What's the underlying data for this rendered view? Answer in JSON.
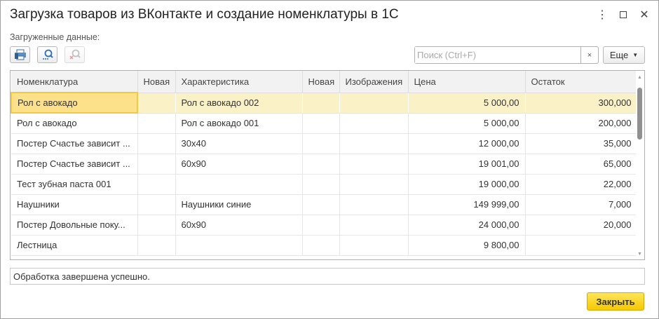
{
  "window": {
    "title": "Загрузка товаров из ВКонтакте и создание номенклатуры в 1С"
  },
  "section_label": "Загруженные данные:",
  "toolbar": {
    "buttons": [
      {
        "icon": "print-icon"
      },
      {
        "icon": "find-icon"
      },
      {
        "icon": "cancel-search-icon",
        "disabled": true
      }
    ]
  },
  "search": {
    "placeholder": "Поиск (Ctrl+F)",
    "value": "",
    "clear": "×"
  },
  "more_label": "Еще",
  "table": {
    "columns": [
      "Номенклатура",
      "Новая",
      "Характеристика",
      "Новая",
      "Изображения",
      "Цена",
      "Остаток"
    ],
    "rows": [
      [
        "Рол с авокадо",
        "",
        "Рол с авокадо 002",
        "",
        "",
        "5 000,00",
        "300,000"
      ],
      [
        "Рол с авокадо",
        "",
        "Рол с авокадо 001",
        "",
        "",
        "5 000,00",
        "200,000"
      ],
      [
        "Постер Счастье зависит ...",
        "",
        "30x40",
        "",
        "",
        "12 000,00",
        "35,000"
      ],
      [
        "Постер Счастье зависит ...",
        "",
        "60x90",
        "",
        "",
        "19 001,00",
        "65,000"
      ],
      [
        "Тест зубная паста 001",
        "",
        "",
        "",
        "",
        "19 000,00",
        "22,000"
      ],
      [
        " Наушники",
        "",
        "Наушники синие",
        "",
        "",
        "149 999,00",
        "7,000"
      ],
      [
        "Постер Довольные поку...",
        "",
        "60x90",
        "",
        "",
        "24 000,00",
        "20,000"
      ],
      [
        "Лестница",
        "",
        "",
        "",
        "",
        "9 800,00",
        ""
      ]
    ],
    "selected_row": 0
  },
  "status_text": "Обработка завершена успешно.",
  "close_label": "Закрыть",
  "colors": {
    "accent": "#f5c800",
    "selected_row": "#fbf1c7",
    "current_cell": "#fde08a"
  }
}
